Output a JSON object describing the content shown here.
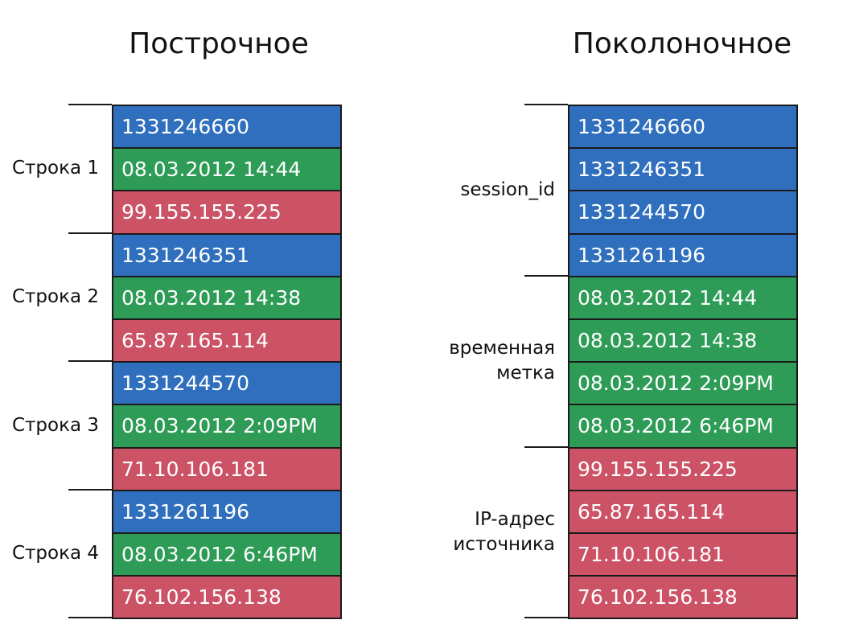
{
  "row_layout": {
    "title": "Построчное",
    "groups": [
      {
        "label": [
          "Строка 1"
        ],
        "cells": [
          "1331246660",
          "08.03.2012 14:44",
          "99.155.155.225"
        ]
      },
      {
        "label": [
          "Строка 2"
        ],
        "cells": [
          "1331246351",
          "08.03.2012 14:38",
          "65.87.165.114"
        ]
      },
      {
        "label": [
          "Строка 3"
        ],
        "cells": [
          "1331244570",
          "08.03.2012 2:09PM",
          "71.10.106.181"
        ]
      },
      {
        "label": [
          "Строка 4"
        ],
        "cells": [
          "1331261196",
          "08.03.2012 6:46PM",
          "76.102.156.138"
        ]
      }
    ]
  },
  "column_layout": {
    "title": "Поколоночное",
    "groups": [
      {
        "label": [
          "session_id"
        ],
        "cells": [
          "1331246660",
          "1331246351",
          "1331244570",
          "1331261196"
        ]
      },
      {
        "label": [
          "временная",
          "метка"
        ],
        "cells": [
          "08.03.2012 14:44",
          "08.03.2012 14:38",
          "08.03.2012 2:09PM",
          "08.03.2012 6:46PM"
        ]
      },
      {
        "label": [
          "IP-адрес",
          "источника"
        ],
        "cells": [
          "99.155.155.225",
          "65.87.165.114",
          "71.10.106.181",
          "76.102.156.138"
        ]
      }
    ]
  }
}
